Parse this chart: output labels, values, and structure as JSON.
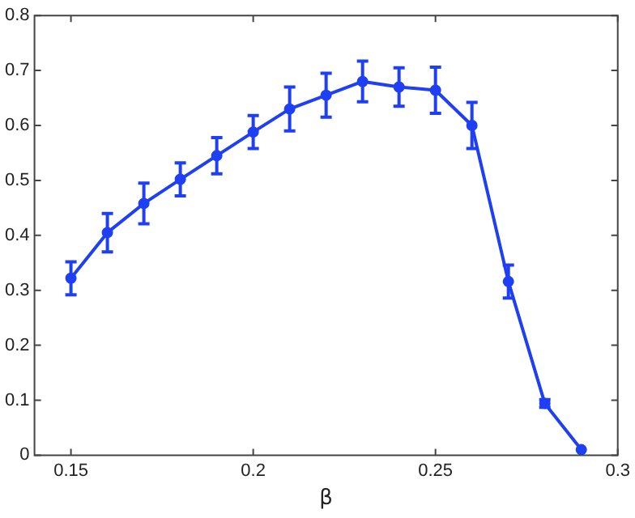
{
  "chart_data": {
    "type": "line",
    "xlabel": "β",
    "x": [
      0.15,
      0.16,
      0.17,
      0.18,
      0.19,
      0.2,
      0.21,
      0.22,
      0.23,
      0.24,
      0.25,
      0.26,
      0.27,
      0.28,
      0.29
    ],
    "series": [
      {
        "color": "#1f3ff5",
        "values": [
          0.322,
          0.405,
          0.458,
          0.502,
          0.545,
          0.588,
          0.63,
          0.655,
          0.68,
          0.67,
          0.664,
          0.6,
          0.316,
          0.094,
          0.01
        ],
        "errors": [
          0.03,
          0.035,
          0.037,
          0.03,
          0.033,
          0.03,
          0.04,
          0.04,
          0.037,
          0.035,
          0.042,
          0.042,
          0.03,
          0.007,
          null
        ]
      }
    ],
    "xlim": [
      0.14,
      0.3
    ],
    "xticks": [
      0.15,
      0.2,
      0.25,
      0.3
    ],
    "ylim": [
      0,
      0.8
    ],
    "yticks": [
      0,
      0.1,
      0.2,
      0.3,
      0.4,
      0.5,
      0.6,
      0.7,
      0.8
    ],
    "grid": false,
    "legend": false,
    "marker": "circle",
    "line_style": "solid"
  }
}
